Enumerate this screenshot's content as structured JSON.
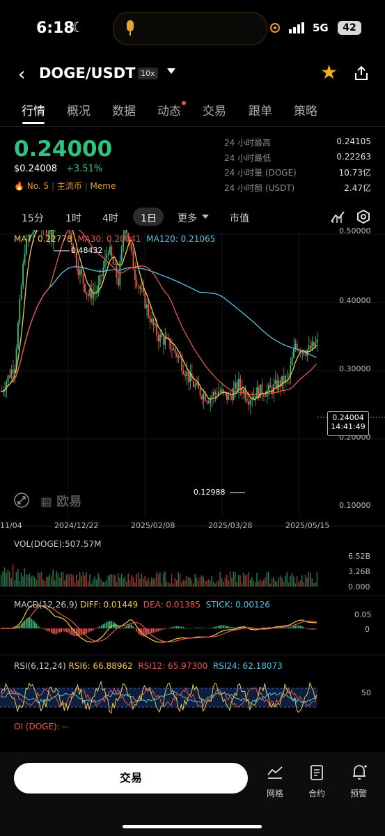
{
  "status_bar": {
    "time": "6:18",
    "network": "5G",
    "battery": "42"
  },
  "header": {
    "pair": "DOGE/USDT",
    "leverage": "10x"
  },
  "tabs": [
    "行情",
    "概况",
    "数据",
    "动态",
    "交易",
    "跟单",
    "策略"
  ],
  "price": {
    "last": "0.24000",
    "usd": "$0.24008",
    "change": "+3.51%",
    "rank": "No. 5",
    "tag1": "主流币",
    "tag2": "Meme"
  },
  "stats": [
    {
      "label": "24 小时最高",
      "value": "0.24105"
    },
    {
      "label": "24 小时最低",
      "value": "0.22263"
    },
    {
      "label": "24 小时量 (DOGE)",
      "value": "10.73亿"
    },
    {
      "label": "24 小时额 (USDT)",
      "value": "2.47亿"
    }
  ],
  "timeframes": [
    "15分",
    "1时",
    "4时",
    "1日",
    "更多",
    "市值"
  ],
  "chart": {
    "ma_labels": {
      "ma7": "MA7: 0.22778",
      "ma30": "MA30: 0.20041",
      "ma120": "MA120: 0.21065"
    },
    "y_ticks": [
      "0.50000",
      "0.40000",
      "0.30000",
      "0.20000",
      "0.10000"
    ],
    "x_ticks": [
      "11/04",
      "2024/12/22",
      "2025/02/08",
      "2025/03/28",
      "2025/05/15"
    ],
    "high_label": "0.48432",
    "low_label": "0.12988",
    "current_price": "0.24004",
    "countdown": "14:41:49",
    "watermark": "欧易",
    "colors": {
      "up": "#2ec27e",
      "down": "#e8574c",
      "ma7": "#f2c94c",
      "ma30": "#e8574c",
      "ma120": "#56c2e6"
    }
  },
  "volume": {
    "label": "VOL(DOGE):507.57M",
    "ticks": [
      "6.52B",
      "3.26B",
      "0.000"
    ]
  },
  "macd": {
    "title": "MACD(12,26,9)",
    "diff": "DIFF: 0.01449",
    "dea": "DEA: 0.01385",
    "stick": "STICK: 0.00126",
    "ticks": [
      "0.05",
      "0"
    ]
  },
  "rsi": {
    "title": "RSI(6,12,24)",
    "rsi6": "RSI6: 66.88962",
    "rsi12": "RSI12: 65.97300",
    "rsi24": "RSI24: 62.18073",
    "tick": "50"
  },
  "oi": {
    "label": "OI (DOGE): --"
  },
  "bottom": {
    "trade": "交易",
    "grid": "网格",
    "contract": "合约",
    "alert": "预警"
  }
}
